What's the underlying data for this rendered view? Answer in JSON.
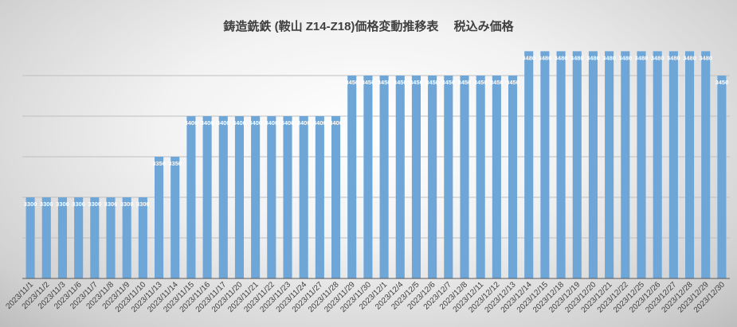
{
  "chart_data": {
    "type": "bar",
    "title": "鋳造銑鉄 (鞍山 Z14-Z18)価格変動推移表　 税込み価格",
    "xlabel": "",
    "ylabel": "",
    "ylim": [
      3200,
      3500
    ],
    "grid": true,
    "bar_color": "#6fa6d8",
    "data_labels": true,
    "categories": [
      "2023/11/1",
      "2023/11/2",
      "2023/11/3",
      "2023/11/6",
      "2023/11/7",
      "2023/11/8",
      "2023/11/9",
      "2023/11/10",
      "2023/11/13",
      "2023/11/14",
      "2023/11/15",
      "2023/11/16",
      "2023/11/17",
      "2023/11/20",
      "2023/11/21",
      "2023/11/22",
      "2023/11/23",
      "2023/11/24",
      "2023/11/27",
      "2023/11/28",
      "2023/11/29",
      "2023/11/30",
      "2023/12/1",
      "2023/12/4",
      "2023/12/5",
      "2023/12/6",
      "2023/12/7",
      "2023/12/8",
      "2023/12/11",
      "2023/12/12",
      "2023/12/13",
      "2023/12/14",
      "2023/12/15",
      "2023/12/18",
      "2023/12/19",
      "2023/12/20",
      "2023/12/21",
      "2023/12/22",
      "2023/12/25",
      "2023/12/26",
      "2023/12/27",
      "2023/12/28",
      "2023/12/29",
      "2023/12/30"
    ],
    "values": [
      3300,
      3300,
      3300,
      3300,
      3300,
      3300,
      3300,
      3300,
      3350,
      3350,
      3400,
      3400,
      3400,
      3400,
      3400,
      3400,
      3400,
      3400,
      3400,
      3400,
      3450,
      3450,
      3450,
      3450,
      3450,
      3450,
      3450,
      3450,
      3450,
      3450,
      3450,
      3480,
      3480,
      3480,
      3480,
      3480,
      3480,
      3480,
      3480,
      3480,
      3480,
      3480,
      3480,
      3450
    ]
  }
}
